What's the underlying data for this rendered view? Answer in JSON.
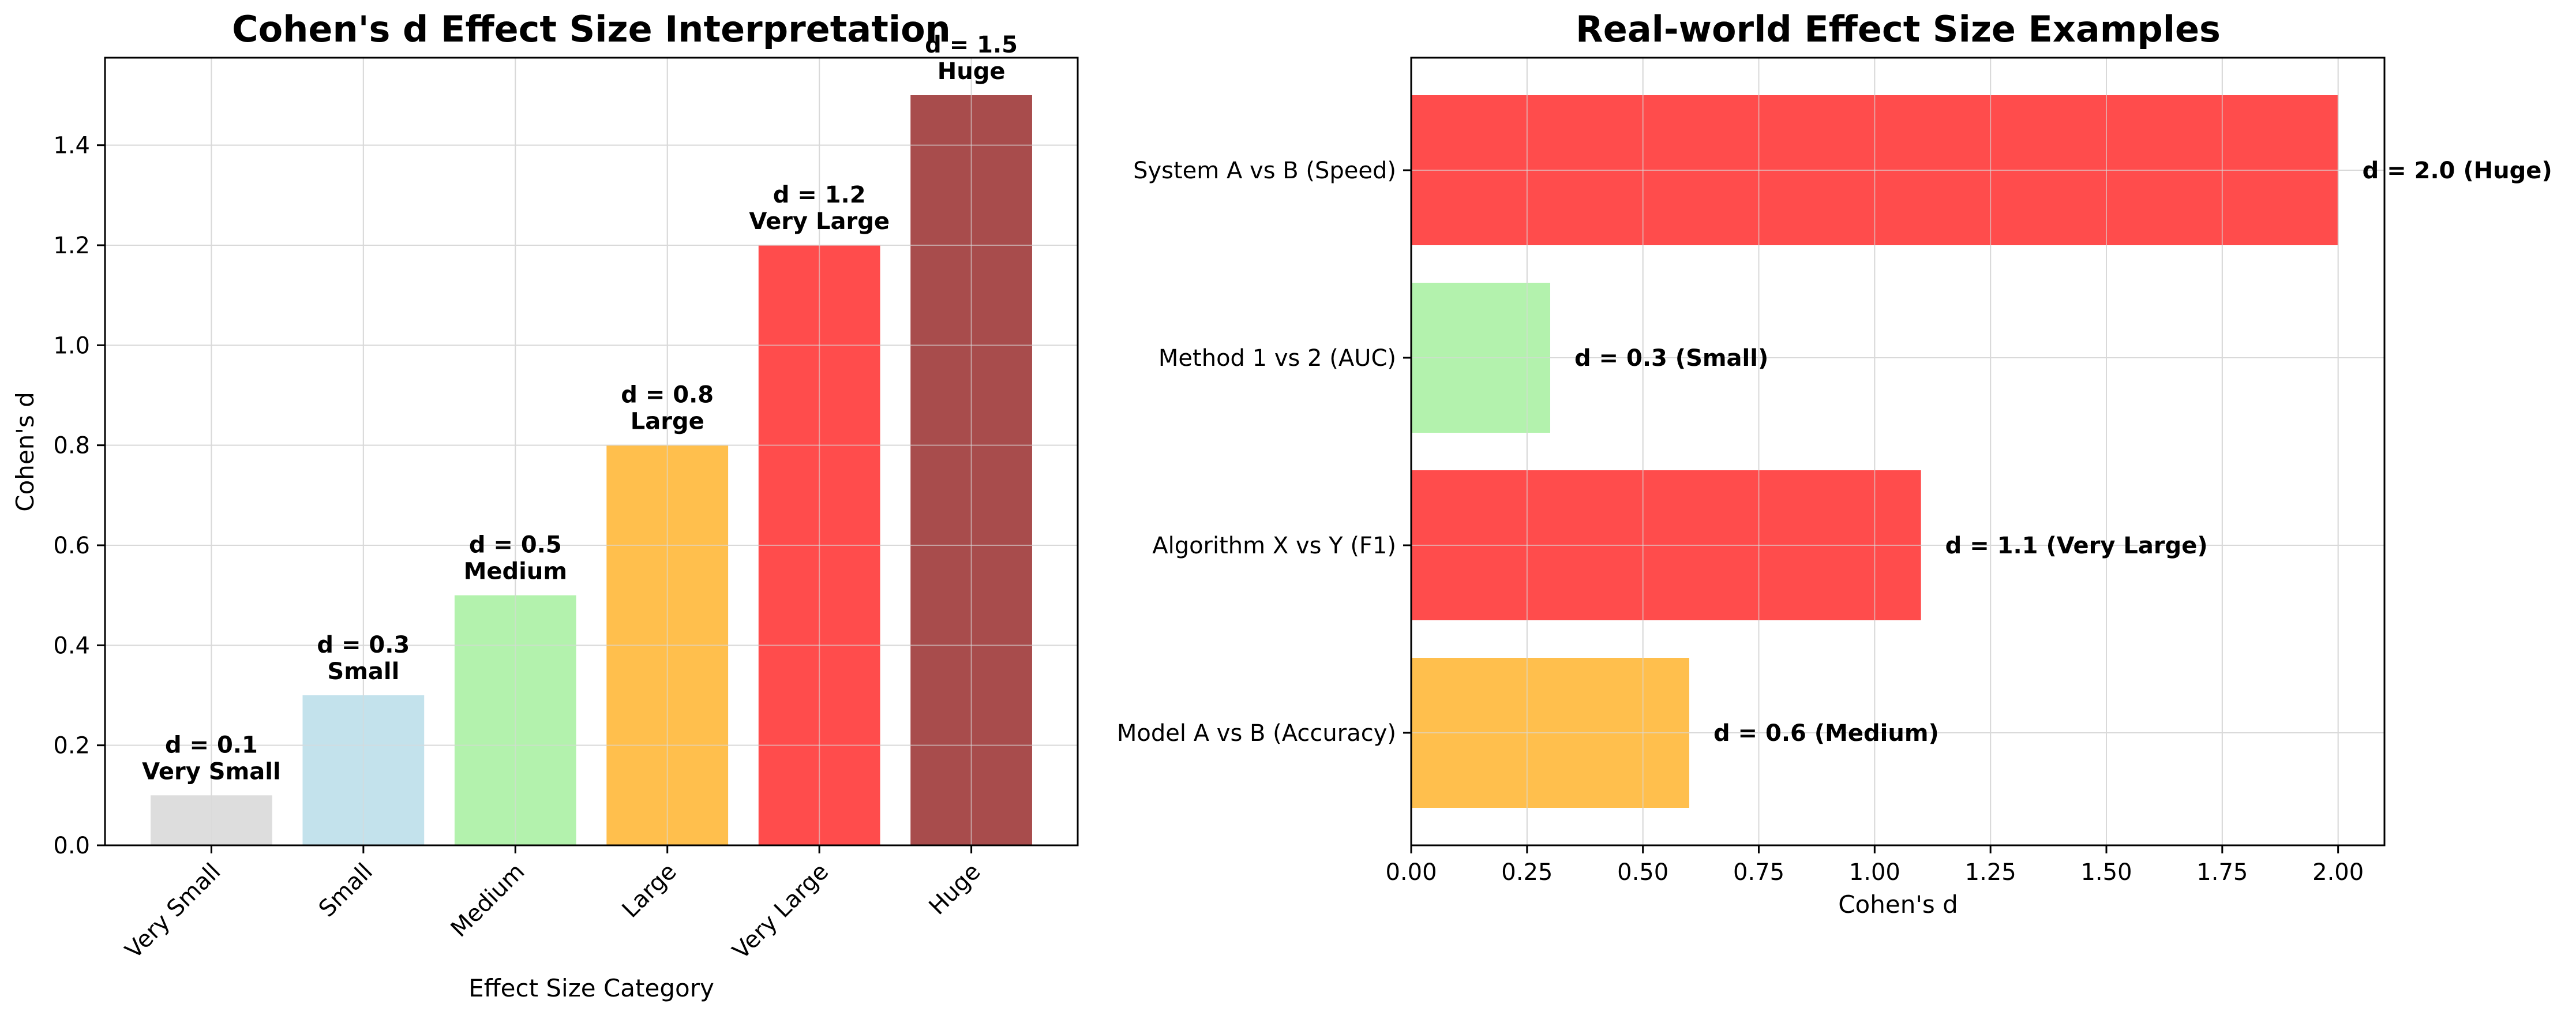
{
  "chart_data": [
    {
      "type": "bar",
      "title": "Cohen's d Effect Size Interpretation",
      "xlabel": "Effect Size Category",
      "ylabel": "Cohen's d",
      "categories": [
        "Very Small",
        "Small",
        "Medium",
        "Large",
        "Very Large",
        "Huge"
      ],
      "values": [
        0.1,
        0.3,
        0.5,
        0.8,
        1.2,
        1.5
      ],
      "bar_labels": [
        [
          "d = 0.1",
          "Very Small"
        ],
        [
          "d = 0.3",
          "Small"
        ],
        [
          "d = 0.5",
          "Medium"
        ],
        [
          "d = 0.8",
          "Large"
        ],
        [
          "d = 1.2",
          "Very Large"
        ],
        [
          "d = 1.5",
          "Huge"
        ]
      ],
      "colors": [
        "#dddddd",
        "#c3e2ec",
        "#b3f2ad",
        "#ffbf4d",
        "#ff4c4c",
        "#a84c4c"
      ],
      "ylim": [
        0,
        1.575
      ],
      "yticks": [
        "0.0",
        "0.2",
        "0.4",
        "0.6",
        "0.8",
        "1.0",
        "1.2",
        "1.4"
      ],
      "grid": true
    },
    {
      "type": "bar",
      "orientation": "horizontal",
      "title": "Real-world Effect Size Examples",
      "xlabel": "Cohen's d",
      "ylabel": "",
      "categories": [
        "Model A vs B (Accuracy)",
        "Algorithm X vs Y (F1)",
        "Method 1 vs 2 (AUC)",
        "System A vs B (Speed)"
      ],
      "values": [
        0.6,
        1.1,
        0.3,
        2.0
      ],
      "bar_labels": [
        "d = 0.6 (Medium)",
        "d = 1.1 (Very Large)",
        "d = 0.3 (Small)",
        "d = 2.0 (Huge)"
      ],
      "colors": [
        "#ffbf4d",
        "#ff4c4c",
        "#b3f2ad",
        "#ff4c4c"
      ],
      "xlim": [
        0,
        2.1
      ],
      "xticks": [
        "0.00",
        "0.25",
        "0.50",
        "0.75",
        "1.00",
        "1.25",
        "1.50",
        "1.75",
        "2.00"
      ],
      "grid": true
    }
  ]
}
